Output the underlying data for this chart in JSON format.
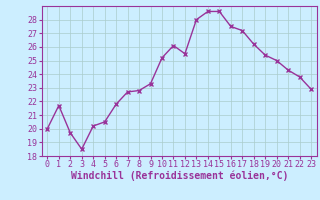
{
  "x": [
    0,
    1,
    2,
    3,
    4,
    5,
    6,
    7,
    8,
    9,
    10,
    11,
    12,
    13,
    14,
    15,
    16,
    17,
    18,
    19,
    20,
    21,
    22,
    23
  ],
  "y": [
    20.0,
    21.7,
    19.7,
    18.5,
    20.2,
    20.5,
    21.8,
    22.7,
    22.8,
    23.3,
    25.2,
    26.1,
    25.5,
    28.0,
    28.6,
    28.6,
    27.5,
    27.2,
    26.2,
    25.4,
    25.0,
    24.3,
    23.8,
    22.9
  ],
  "line_color": "#993399",
  "marker": "x",
  "marker_size": 3,
  "xlabel": "Windchill (Refroidissement éolien,°C)",
  "xlim": [
    -0.5,
    23.5
  ],
  "ylim": [
    18,
    29
  ],
  "yticks": [
    18,
    19,
    20,
    21,
    22,
    23,
    24,
    25,
    26,
    27,
    28
  ],
  "xticks": [
    0,
    1,
    2,
    3,
    4,
    5,
    6,
    7,
    8,
    9,
    10,
    11,
    12,
    13,
    14,
    15,
    16,
    17,
    18,
    19,
    20,
    21,
    22,
    23
  ],
  "bg_color": "#cceeff",
  "grid_color": "#aacccc",
  "tick_label_fontsize": 6,
  "xlabel_fontsize": 7,
  "linewidth": 1.0,
  "markeredgewidth": 1.0
}
